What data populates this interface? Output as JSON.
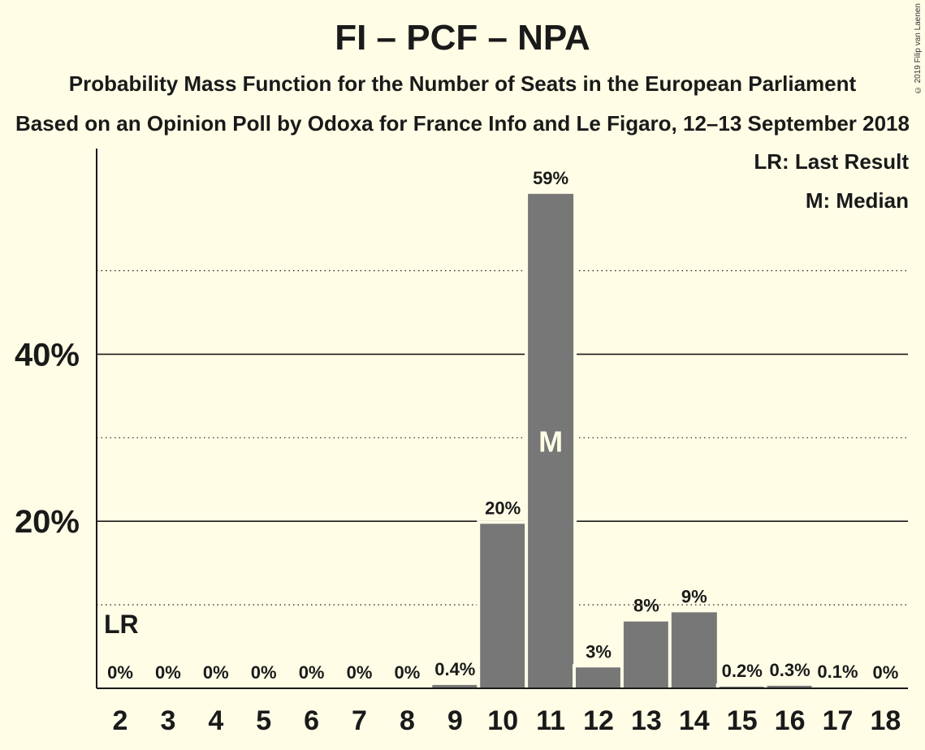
{
  "chart_data": {
    "type": "bar",
    "title": "FI – PCF – NPA",
    "subtitle": "Probability Mass Function for the Number of Seats in the European Parliament",
    "subtitle2": "Based on an Opinion Poll by Odoxa for France Info and Le Figaro, 12–13 September 2018",
    "copyright": "© 2019 Filip van Laenen",
    "legend": [
      "LR: Last Result",
      "M: Median"
    ],
    "legend_position": "top-right",
    "categories": [
      "2",
      "3",
      "4",
      "5",
      "6",
      "7",
      "8",
      "9",
      "10",
      "11",
      "12",
      "13",
      "14",
      "15",
      "16",
      "17",
      "18"
    ],
    "values": [
      0,
      0,
      0,
      0,
      0,
      0,
      0,
      0.4,
      19.7,
      59.2,
      2.5,
      8.0,
      9.1,
      0.2,
      0.3,
      0.1,
      0
    ],
    "data_labels": [
      "0%",
      "0%",
      "0%",
      "0%",
      "0%",
      "0%",
      "0%",
      "0.4%",
      "20%",
      "59%",
      "3%",
      "8%",
      "9%",
      "0.2%",
      "0.3%",
      "0.1%",
      "0%"
    ],
    "ylim": [
      0,
      64
    ],
    "yticks_major": [
      20,
      40
    ],
    "ytick_labels": [
      "20%",
      "40%"
    ],
    "yticks_minor": [
      10,
      30,
      50
    ],
    "last_result_category": "2",
    "last_result_label": "LR",
    "median_category": "11",
    "median_label": "M",
    "bar_color": "#777777",
    "background_color": "#fffde6"
  }
}
